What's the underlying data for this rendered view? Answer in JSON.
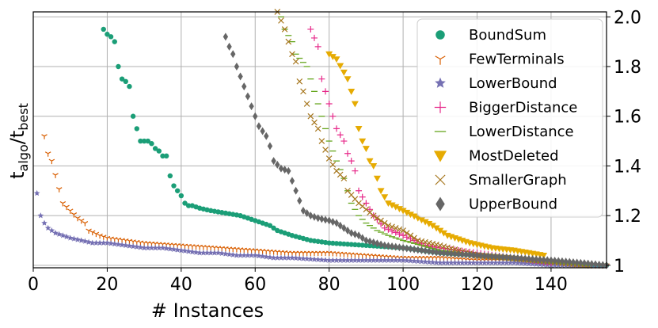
{
  "chart_data": {
    "type": "scatter",
    "xlabel": "# Instances",
    "ylabel_main": "t",
    "ylabel_sub1": "algo",
    "ylabel_sep": "/t",
    "ylabel_sub2": "best",
    "xlim": [
      0,
      155
    ],
    "ylim": [
      0.99,
      2.02
    ],
    "xticks": [
      0,
      20,
      40,
      60,
      80,
      100,
      120,
      140
    ],
    "yticks": [
      1,
      1.2,
      1.4,
      1.6,
      1.8,
      2.0
    ],
    "ytick_labels": [
      "1",
      "1.2",
      "1.4",
      "1.6",
      "1.8",
      "2.0"
    ],
    "legend_position": "top-right",
    "series": [
      {
        "name": "BoundSum",
        "marker": "circle",
        "color": "#1b9e77",
        "points": [
          [
            19,
            1.95
          ],
          [
            20,
            1.93
          ],
          [
            21,
            1.92
          ],
          [
            22,
            1.9
          ],
          [
            23,
            1.8
          ],
          [
            24,
            1.75
          ],
          [
            25,
            1.74
          ],
          [
            26,
            1.72
          ],
          [
            27,
            1.6
          ],
          [
            28,
            1.55
          ],
          [
            29,
            1.5
          ],
          [
            30,
            1.5
          ],
          [
            31,
            1.5
          ],
          [
            32,
            1.49
          ],
          [
            33,
            1.47
          ],
          [
            34,
            1.46
          ],
          [
            35,
            1.44
          ],
          [
            36,
            1.44
          ],
          [
            37,
            1.36
          ],
          [
            38,
            1.32
          ],
          [
            39,
            1.3
          ],
          [
            40,
            1.28
          ],
          [
            41,
            1.25
          ],
          [
            42,
            1.24
          ],
          [
            43,
            1.24
          ],
          [
            45,
            1.23
          ],
          [
            48,
            1.22
          ],
          [
            52,
            1.21
          ],
          [
            56,
            1.2
          ],
          [
            60,
            1.18
          ],
          [
            64,
            1.16
          ],
          [
            66,
            1.14
          ],
          [
            70,
            1.12
          ],
          [
            75,
            1.1
          ],
          [
            80,
            1.09
          ],
          [
            90,
            1.08
          ],
          [
            100,
            1.07
          ],
          [
            110,
            1.05
          ],
          [
            120,
            1.04
          ],
          [
            130,
            1.03
          ],
          [
            140,
            1.01
          ],
          [
            150,
            1.0
          ],
          [
            155,
            1.0
          ]
        ]
      },
      {
        "name": "FewTerminals",
        "marker": "tri",
        "color": "#d95f02",
        "points": [
          [
            3,
            1.52
          ],
          [
            4,
            1.45
          ],
          [
            5,
            1.42
          ],
          [
            8,
            1.25
          ],
          [
            10,
            1.22
          ],
          [
            12,
            1.19
          ],
          [
            14,
            1.17
          ],
          [
            15,
            1.14
          ],
          [
            18,
            1.12
          ],
          [
            20,
            1.11
          ],
          [
            25,
            1.1
          ],
          [
            30,
            1.09
          ],
          [
            40,
            1.08
          ],
          [
            50,
            1.07
          ],
          [
            60,
            1.06
          ],
          [
            70,
            1.05
          ],
          [
            80,
            1.05
          ],
          [
            90,
            1.04
          ],
          [
            100,
            1.03
          ],
          [
            110,
            1.03
          ],
          [
            120,
            1.02
          ],
          [
            130,
            1.02
          ],
          [
            140,
            1.01
          ],
          [
            150,
            1.0
          ],
          [
            155,
            1.0
          ]
        ]
      },
      {
        "name": "LowerBound",
        "marker": "star",
        "color": "#7570b3",
        "points": [
          [
            1,
            1.29
          ],
          [
            2,
            1.2
          ],
          [
            3,
            1.17
          ],
          [
            4,
            1.15
          ],
          [
            6,
            1.13
          ],
          [
            8,
            1.12
          ],
          [
            10,
            1.11
          ],
          [
            13,
            1.1
          ],
          [
            16,
            1.09
          ],
          [
            20,
            1.09
          ],
          [
            25,
            1.08
          ],
          [
            30,
            1.07
          ],
          [
            35,
            1.07
          ],
          [
            40,
            1.06
          ],
          [
            45,
            1.05
          ],
          [
            50,
            1.05
          ],
          [
            55,
            1.04
          ],
          [
            60,
            1.04
          ],
          [
            65,
            1.03
          ],
          [
            70,
            1.03
          ],
          [
            80,
            1.02
          ],
          [
            90,
            1.02
          ],
          [
            100,
            1.02
          ],
          [
            110,
            1.01
          ],
          [
            120,
            1.01
          ],
          [
            130,
            1.01
          ],
          [
            140,
            1.0
          ],
          [
            150,
            1.0
          ],
          [
            155,
            1.0
          ]
        ]
      },
      {
        "name": "BiggerDistance",
        "marker": "plus",
        "color": "#e7298a",
        "points": [
          [
            75,
            1.95
          ],
          [
            77,
            1.88
          ],
          [
            78,
            1.75
          ],
          [
            79,
            1.7
          ],
          [
            80,
            1.65
          ],
          [
            81,
            1.6
          ],
          [
            82,
            1.55
          ],
          [
            84,
            1.5
          ],
          [
            85,
            1.45
          ],
          [
            86,
            1.42
          ],
          [
            87,
            1.38
          ],
          [
            88,
            1.3
          ],
          [
            90,
            1.25
          ],
          [
            92,
            1.2
          ],
          [
            95,
            1.15
          ],
          [
            100,
            1.12
          ],
          [
            103,
            1.1
          ],
          [
            106,
            1.08
          ],
          [
            110,
            1.07
          ],
          [
            120,
            1.05
          ],
          [
            130,
            1.03
          ],
          [
            140,
            1.01
          ]
        ]
      },
      {
        "name": "LowerDistance",
        "marker": "dash",
        "color": "#66a61e",
        "points": [
          [
            67,
            2.0
          ],
          [
            68,
            1.95
          ],
          [
            70,
            1.9
          ],
          [
            71,
            1.85
          ],
          [
            74,
            1.8
          ],
          [
            75,
            1.75
          ],
          [
            76,
            1.7
          ],
          [
            78,
            1.6
          ],
          [
            80,
            1.5
          ],
          [
            82,
            1.42
          ],
          [
            84,
            1.35
          ],
          [
            85,
            1.3
          ],
          [
            86,
            1.25
          ],
          [
            88,
            1.2
          ],
          [
            90,
            1.17
          ],
          [
            93,
            1.14
          ],
          [
            96,
            1.12
          ],
          [
            100,
            1.1
          ],
          [
            105,
            1.08
          ],
          [
            110,
            1.06
          ],
          [
            120,
            1.04
          ],
          [
            130,
            1.02
          ],
          [
            140,
            1.01
          ],
          [
            150,
            1.0
          ]
        ]
      },
      {
        "name": "MostDeleted",
        "marker": "tri-down",
        "color": "#e6ab02",
        "points": [
          [
            80,
            1.85
          ],
          [
            81,
            1.84
          ],
          [
            82,
            1.83
          ],
          [
            85,
            1.75
          ],
          [
            86,
            1.7
          ],
          [
            87,
            1.65
          ],
          [
            88,
            1.55
          ],
          [
            89,
            1.5
          ],
          [
            90,
            1.47
          ],
          [
            91,
            1.42
          ],
          [
            92,
            1.4
          ],
          [
            93,
            1.35
          ],
          [
            94,
            1.3
          ],
          [
            96,
            1.25
          ],
          [
            100,
            1.22
          ],
          [
            104,
            1.19
          ],
          [
            108,
            1.16
          ],
          [
            112,
            1.12
          ],
          [
            118,
            1.09
          ],
          [
            124,
            1.07
          ],
          [
            130,
            1.06
          ],
          [
            134,
            1.05
          ],
          [
            138,
            1.04
          ]
        ]
      },
      {
        "name": "SmallerGraph",
        "marker": "x",
        "color": "#a6761d",
        "points": [
          [
            66,
            2.02
          ],
          [
            68,
            1.95
          ],
          [
            70,
            1.85
          ],
          [
            71,
            1.82
          ],
          [
            72,
            1.74
          ],
          [
            73,
            1.7
          ],
          [
            74,
            1.65
          ],
          [
            75,
            1.6
          ],
          [
            77,
            1.55
          ],
          [
            78,
            1.5
          ],
          [
            80,
            1.43
          ],
          [
            82,
            1.38
          ],
          [
            84,
            1.35
          ],
          [
            85,
            1.3
          ],
          [
            88,
            1.25
          ],
          [
            92,
            1.2
          ],
          [
            96,
            1.16
          ],
          [
            100,
            1.14
          ],
          [
            104,
            1.1
          ],
          [
            110,
            1.08
          ],
          [
            115,
            1.06
          ],
          [
            120,
            1.04
          ],
          [
            128,
            1.03
          ],
          [
            135,
            1.02
          ],
          [
            142,
            1.01
          ],
          [
            150,
            1.0
          ]
        ]
      },
      {
        "name": "UpperBound",
        "marker": "diamond",
        "color": "#666666",
        "points": [
          [
            52,
            1.92
          ],
          [
            53,
            1.88
          ],
          [
            54,
            1.85
          ],
          [
            55,
            1.8
          ],
          [
            56,
            1.76
          ],
          [
            57,
            1.72
          ],
          [
            58,
            1.68
          ],
          [
            60,
            1.6
          ],
          [
            61,
            1.56
          ],
          [
            63,
            1.52
          ],
          [
            64,
            1.48
          ],
          [
            65,
            1.42
          ],
          [
            67,
            1.39
          ],
          [
            69,
            1.38
          ],
          [
            70,
            1.34
          ],
          [
            71,
            1.3
          ],
          [
            72,
            1.26
          ],
          [
            73,
            1.22
          ],
          [
            75,
            1.2
          ],
          [
            77,
            1.19
          ],
          [
            80,
            1.18
          ],
          [
            82,
            1.17
          ],
          [
            84,
            1.15
          ],
          [
            86,
            1.13
          ],
          [
            88,
            1.12
          ],
          [
            90,
            1.1
          ],
          [
            95,
            1.08
          ],
          [
            100,
            1.07
          ],
          [
            105,
            1.06
          ],
          [
            110,
            1.05
          ],
          [
            120,
            1.04
          ],
          [
            130,
            1.03
          ],
          [
            140,
            1.02
          ],
          [
            148,
            1.01
          ],
          [
            155,
            1.0
          ]
        ]
      }
    ]
  }
}
